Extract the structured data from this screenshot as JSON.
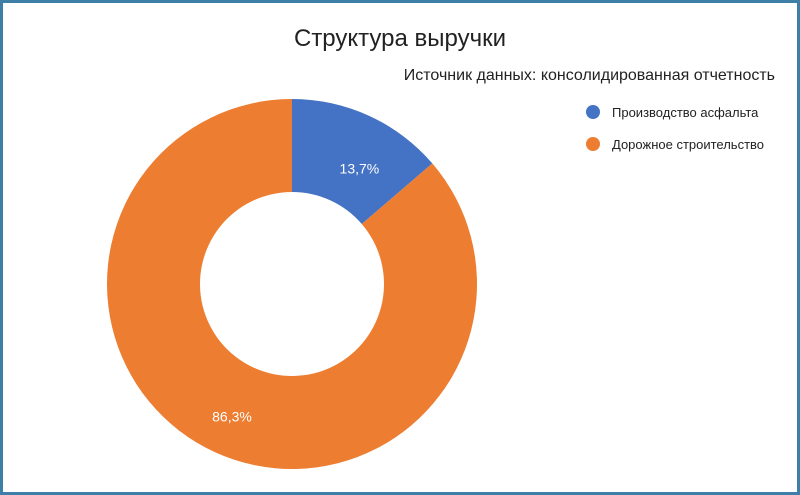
{
  "chart_data": {
    "type": "pie",
    "title": "Структура выручки",
    "subtitle": "Источник данных: консолидированная отчетность",
    "categories": [
      "Производство асфальта",
      "Дорожное строительство"
    ],
    "values": [
      13.7,
      86.3
    ],
    "data_labels": [
      "13,7%",
      "86,3%"
    ],
    "colors": [
      "#4472c4",
      "#ed7d31"
    ],
    "donut": true,
    "legend_position": "right"
  }
}
